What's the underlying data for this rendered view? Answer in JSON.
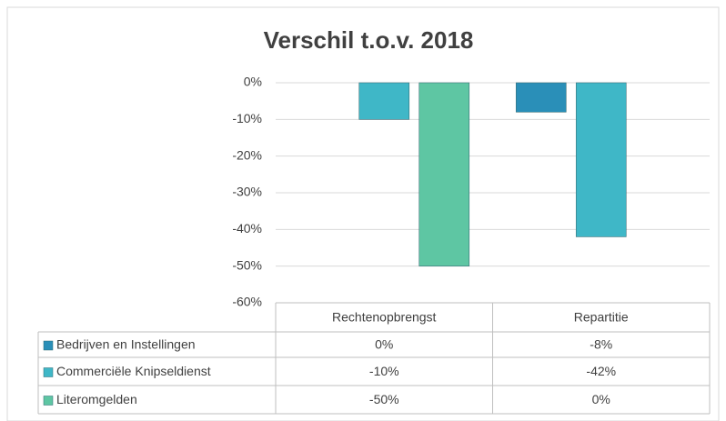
{
  "chart_data": {
    "type": "bar",
    "title": "Verschil t.o.v. 2018",
    "categories": [
      "Rechtenopbrengst",
      "Repartitie"
    ],
    "series": [
      {
        "name": "Bedrijven en Instellingen",
        "color": "#2a8fb8",
        "values": [
          0,
          -8
        ],
        "value_labels": [
          "0%",
          "-8%"
        ]
      },
      {
        "name": "Commerciële Knipseldienst",
        "color": "#3fb7c7",
        "values": [
          -10,
          -42
        ],
        "value_labels": [
          "-10%",
          "-42%"
        ]
      },
      {
        "name": "Literomgelden",
        "color": "#5ec6a3",
        "values": [
          -50,
          0
        ],
        "value_labels": [
          "-50%",
          "0%"
        ]
      }
    ],
    "ylim": [
      -60,
      0
    ],
    "yticks": [
      {
        "value": 0,
        "label": "0%"
      },
      {
        "value": -10,
        "label": "-10%"
      },
      {
        "value": -20,
        "label": "-20%"
      },
      {
        "value": -30,
        "label": "-30%"
      },
      {
        "value": -40,
        "label": "-40%"
      },
      {
        "value": -50,
        "label": "-50%"
      },
      {
        "value": -60,
        "label": "-60%"
      }
    ],
    "grid": true,
    "data_table": true
  }
}
